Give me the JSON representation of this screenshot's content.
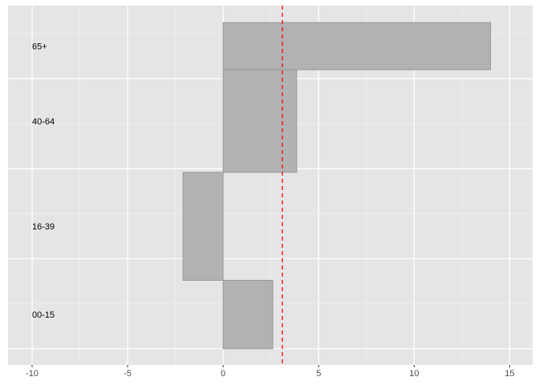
{
  "chart_data": {
    "type": "bar",
    "orientation": "horizontal",
    "variable_width": true,
    "title": "",
    "xlabel": "",
    "ylabel": "",
    "xlim": [
      -11.26,
      16.2
    ],
    "ylim": [
      -0.045,
      0.953
    ],
    "x_ticks": [
      -10,
      -5,
      0,
      5,
      10,
      15
    ],
    "x_tick_labels": [
      "-10",
      "-5",
      "0",
      "5",
      "10",
      "15"
    ],
    "y_gridlines": [
      0,
      0.25,
      0.5,
      0.75
    ],
    "grid": true,
    "categories": [
      "00-15",
      "16-39",
      "40-64",
      "65+"
    ],
    "bars": [
      {
        "label": "00-15",
        "value": 2.6,
        "ymin": 0,
        "ymax": 0.19
      },
      {
        "label": "16-39",
        "value": -2.1,
        "ymin": 0.19,
        "ymax": 0.49
      },
      {
        "label": "40-64",
        "value": 3.85,
        "ymin": 0.49,
        "ymax": 0.775
      },
      {
        "label": "65+",
        "value": 14.0,
        "ymin": 0.775,
        "ymax": 0.906
      }
    ],
    "label_x": -10,
    "reference_line": {
      "x": 3.1,
      "color": "#FF0000",
      "style": "dashed"
    },
    "colors": {
      "panel": "#E5E5E5",
      "bar_fill": "#B2B2B2",
      "bar_stroke": "#999999",
      "grid": "#FFFFFF"
    }
  }
}
